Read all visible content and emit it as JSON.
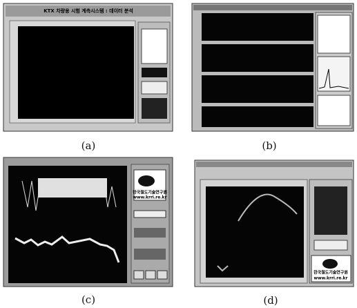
{
  "panels": [
    {
      "caption": "(a)",
      "title": "KTX 차량용 시험 계측시스템 : 데이터 분석"
    },
    {
      "caption": "(b)"
    },
    {
      "caption": "(c)",
      "logo_name": "한국철도기술연구원",
      "logo_url": "www.krri.re.kr"
    },
    {
      "caption": "(d)",
      "logo_name": "한국철도기술연구원",
      "logo_url": "www.krri.re.kr"
    }
  ]
}
